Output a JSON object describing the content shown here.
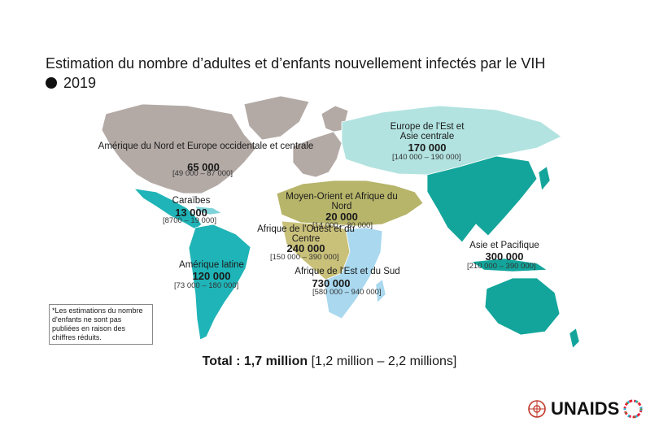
{
  "title": {
    "line1": "Estimation du nombre d’adultes et d’enfants nouvellement infectés par le VIH",
    "line2": "2019"
  },
  "regions": [
    {
      "id": "north-america-europe",
      "label": "Amérique du Nord et Europe occidentale et centrale",
      "value": "65 000",
      "range": "[49 000 – 87 000]",
      "color": "#b3aaa6"
    },
    {
      "id": "caribbean",
      "label": "Caraïbes",
      "value": "13 000",
      "range": "[8700 – 19 000]",
      "color": "#7fd3d8"
    },
    {
      "id": "latin-america",
      "label": "Amérique latine",
      "value": "120 000",
      "range": "[73 000 – 180 000]",
      "color": "#1fb4b7"
    },
    {
      "id": "eastern-europe-central-asia",
      "label": "Europe de l’Est et Asie centrale",
      "value": "170 000",
      "range": "[140 000 – 190 000]",
      "color": "#b2e3e0"
    },
    {
      "id": "middle-east-north-africa",
      "label": "Moyen-Orient et Afrique du Nord",
      "value": "20 000",
      "range": "[14 000 – 30 000]",
      "color": "#b7b56a"
    },
    {
      "id": "west-central-africa",
      "label": "Afrique de l'Ouest et du Centre",
      "value": "240 000",
      "range": "[150 000 – 390 000]",
      "color": "#c9c07a"
    },
    {
      "id": "eastern-southern-africa",
      "label": "Afrique de l'Est et du Sud",
      "value": "730 000",
      "range": "[580 000 – 940 000]",
      "color": "#a9d8ef"
    },
    {
      "id": "asia-pacific",
      "label": "Asie et Pacifique",
      "value": "300 000",
      "range": "[210 000 – 390 000]",
      "color": "#13a59b"
    }
  ],
  "note": "*Les estimations du nombre d'enfants ne sont pas publiées en raison des chiffres réduits.",
  "total": {
    "label": "Total :",
    "value": "1,7 million",
    "range": "[1,2 million – 2,2 millions]"
  },
  "logo": {
    "text": "UNAIDS"
  }
}
